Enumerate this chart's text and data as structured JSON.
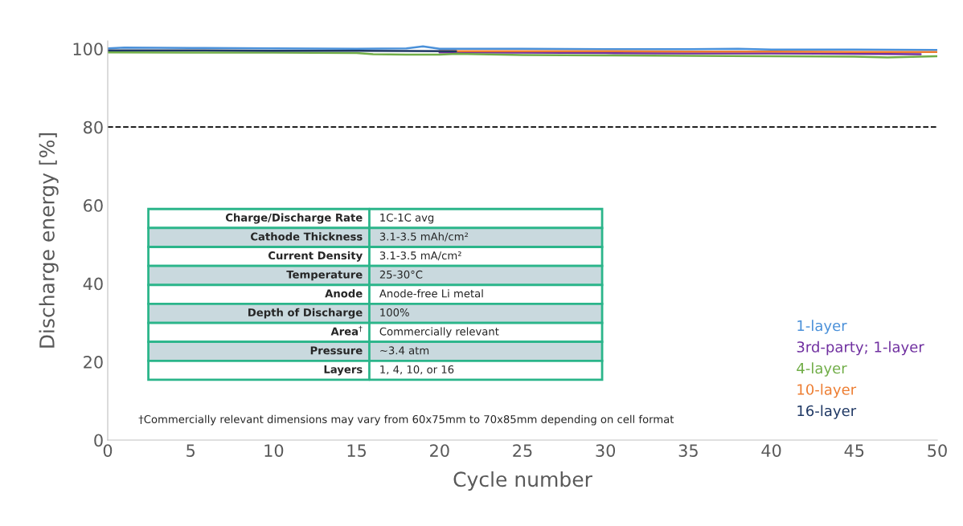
{
  "chart_data": {
    "type": "line",
    "xlabel": "Cycle number",
    "ylabel": "Discharge energy [%]",
    "xlim": [
      0,
      50
    ],
    "xticks": [
      0,
      5,
      10,
      15,
      20,
      25,
      30,
      35,
      40,
      45,
      50
    ],
    "ylim": [
      0,
      102
    ],
    "yticks": [
      0,
      20,
      40,
      60,
      80,
      100
    ],
    "grid": false,
    "legend": "bottom right",
    "marker": "none",
    "line_style": "solid",
    "ref_lines": [
      {
        "axis": "y",
        "value": 80,
        "color": "#000000",
        "line_style": "dashed"
      }
    ],
    "series": [
      {
        "name": "1-layer",
        "color": "#4a90d9",
        "x": [
          0,
          1,
          5,
          10,
          15,
          18,
          19,
          20,
          25,
          30,
          35,
          38,
          40,
          45,
          50
        ],
        "values": [
          100.1,
          100.3,
          100.2,
          100.1,
          100.0,
          100.1,
          100.6,
          100.0,
          100.0,
          99.9,
          99.9,
          100.0,
          99.8,
          99.8,
          99.7
        ]
      },
      {
        "name": "3rd-party; 1-layer",
        "color": "#7030a0",
        "x": [
          20,
          25,
          30,
          35,
          40,
          45,
          49
        ],
        "values": [
          99.1,
          99.0,
          98.9,
          98.8,
          98.8,
          98.7,
          98.6
        ]
      },
      {
        "name": "4-layer",
        "color": "#70ad47",
        "x": [
          0,
          5,
          10,
          15,
          16,
          18,
          20,
          21,
          25,
          30,
          35,
          40,
          45,
          47,
          50
        ],
        "values": [
          99.1,
          99.0,
          99.0,
          98.9,
          98.6,
          98.5,
          98.5,
          98.7,
          98.4,
          98.3,
          98.2,
          98.1,
          98.0,
          97.8,
          98.1
        ]
      },
      {
        "name": "10-layer",
        "color": "#ed7d31",
        "x": [
          20,
          25,
          30,
          35,
          40,
          45,
          50
        ],
        "values": [
          99.4,
          99.4,
          99.4,
          99.3,
          99.3,
          99.2,
          99.2
        ]
      },
      {
        "name": "16-layer",
        "color": "#1f3864",
        "x": [
          0,
          5,
          10,
          15,
          21
        ],
        "values": [
          99.6,
          99.6,
          99.5,
          99.5,
          99.4
        ]
      }
    ],
    "annotations": [
      "Charge/Discharge Rate",
      "1C-1C avg",
      "Cathode Thickness",
      "3.1-3.5 mAh/cm²",
      "Current Density",
      "3.1-3.5 mA/cm²",
      "Temperature",
      "25-30°C",
      "Anode",
      "Anode-free Li metal",
      "Depth of Discharge",
      "100%",
      "Area$^{†}$",
      "Commercially relevant",
      "Pressure",
      "~3.4 atm",
      "Layers",
      "1, 4, 10, or 16",
      "†Commercially relevant dimensions may vary from 60x75mm to 70x85mm depending on cell format"
    ]
  }
}
